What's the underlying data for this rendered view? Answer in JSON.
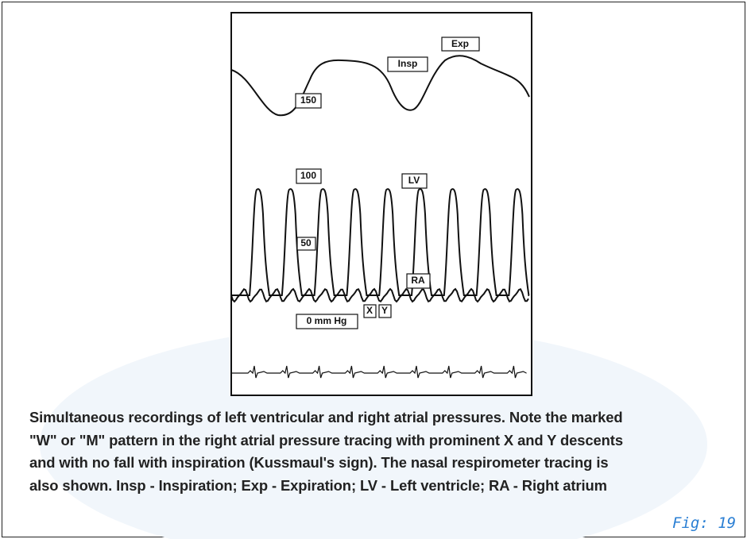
{
  "figure": {
    "labels": {
      "exp": "Exp",
      "insp": "Insp",
      "p150": "150",
      "p100": "100",
      "lv": "LV",
      "p50": "50",
      "ra": "RA",
      "zero": "0 mm Hg",
      "x": "X",
      "y": "Y"
    },
    "caption": [
      "Simultaneous recordings of left ventricular and right atrial pressures. Note the marked",
      "\"W\" or \"M\" pattern in the right atrial pressure tracing with prominent X and Y descents",
      "and with no fall with inspiration (Kussmaul's sign). The nasal respirometer tracing is",
      "also shown. Insp - Inspiration; Exp - Expiration; LV - Left ventricle; RA - Right atrium"
    ],
    "fig_number": "Fig: 19"
  }
}
